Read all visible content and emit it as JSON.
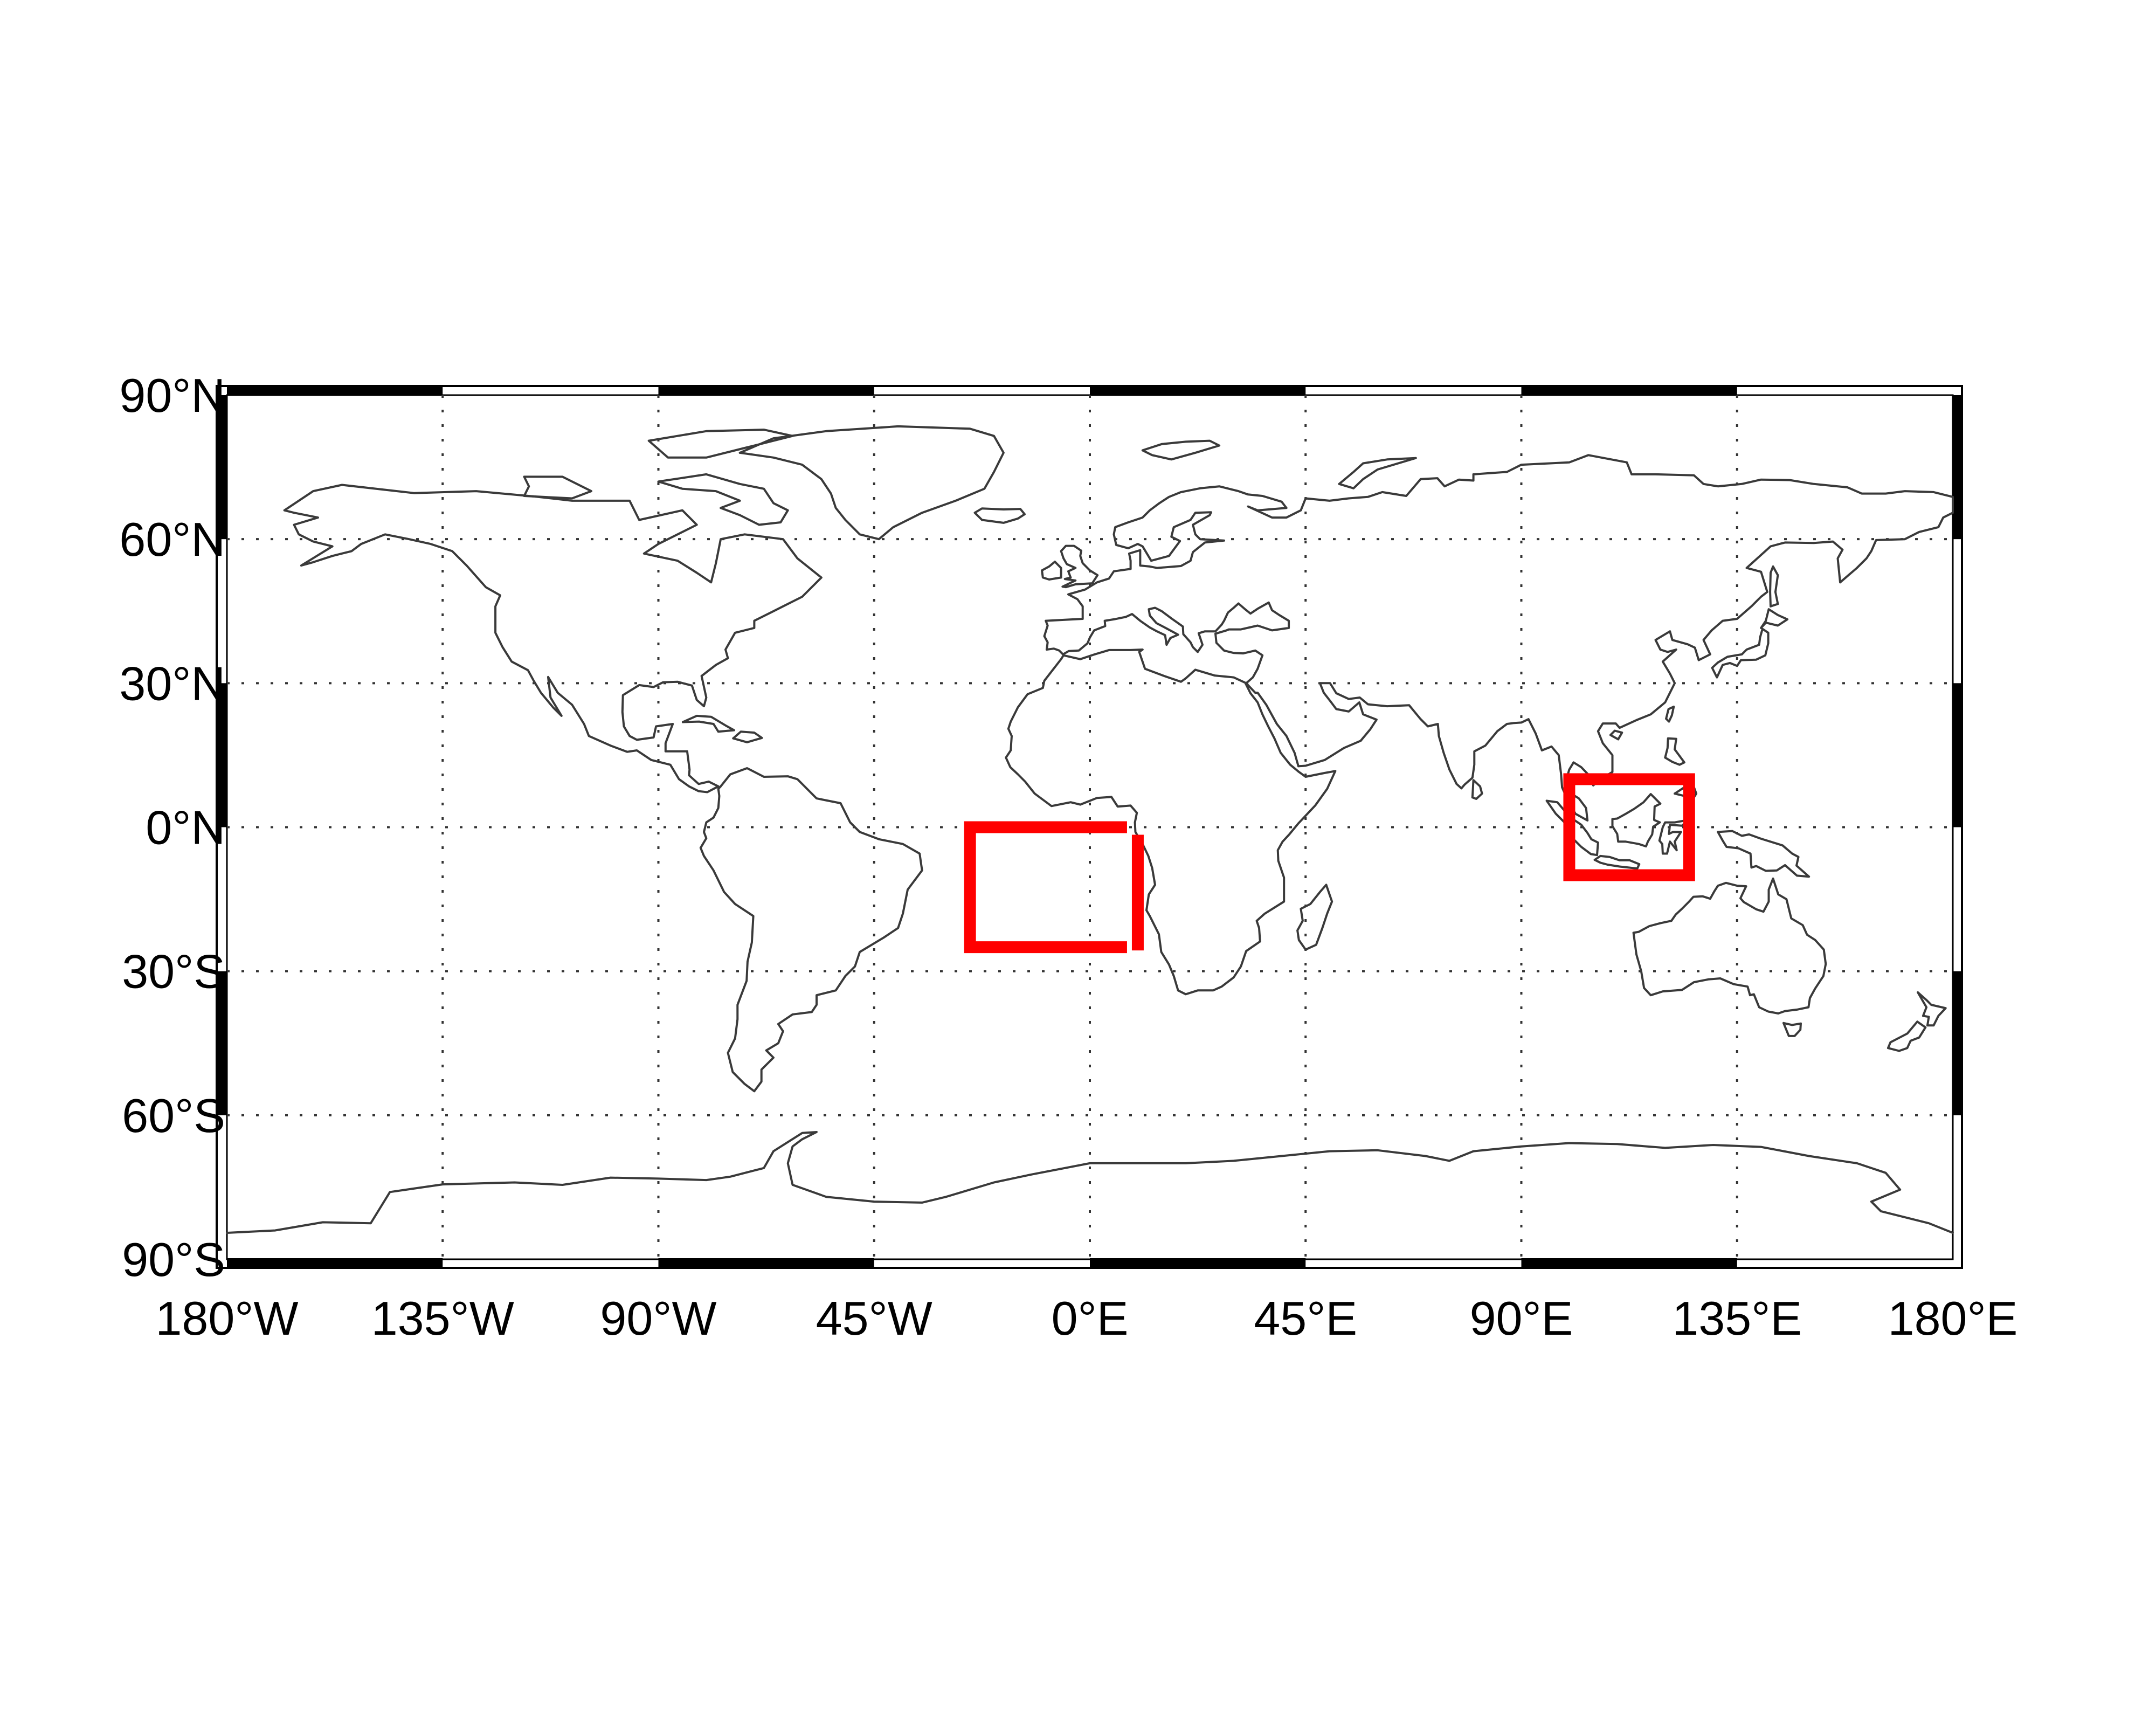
{
  "map": {
    "projection": "equirectangular",
    "extent": {
      "lon": [
        -180,
        180
      ],
      "lat": [
        -90,
        90
      ]
    },
    "frame_style": "alternating black and white border",
    "gridlines": {
      "visible": true,
      "style": "dotted",
      "lon_step": 45,
      "lat_step": 30
    },
    "coastline_color": "#3a3a3a",
    "lon_ticks": [
      {
        "value": -180,
        "label": "180°W"
      },
      {
        "value": -135,
        "label": "135°W"
      },
      {
        "value": -90,
        "label": "90°W"
      },
      {
        "value": -45,
        "label": "45°W"
      },
      {
        "value": 0,
        "label": "0°E"
      },
      {
        "value": 45,
        "label": "45°E"
      },
      {
        "value": 90,
        "label": "90°E"
      },
      {
        "value": 135,
        "label": "135°E"
      },
      {
        "value": 180,
        "label": "180°E"
      }
    ],
    "lat_ticks": [
      {
        "value": 90,
        "label": "90°N"
      },
      {
        "value": 60,
        "label": "60°N"
      },
      {
        "value": 30,
        "label": "30°N"
      },
      {
        "value": 0,
        "label": "0°N"
      },
      {
        "value": -30,
        "label": "30°S"
      },
      {
        "value": -60,
        "label": "60°S"
      },
      {
        "value": -90,
        "label": "90°S"
      }
    ],
    "regions": [
      {
        "id": "atlantic-region",
        "lon": [
          -25,
          10
        ],
        "lat": [
          -25,
          0
        ],
        "color": "#ff0000",
        "style": "broken outline"
      },
      {
        "id": "maritime-continent-region",
        "lon": [
          100,
          125
        ],
        "lat": [
          -10,
          10
        ],
        "color": "#ff0000",
        "style": "solid outline"
      }
    ]
  }
}
